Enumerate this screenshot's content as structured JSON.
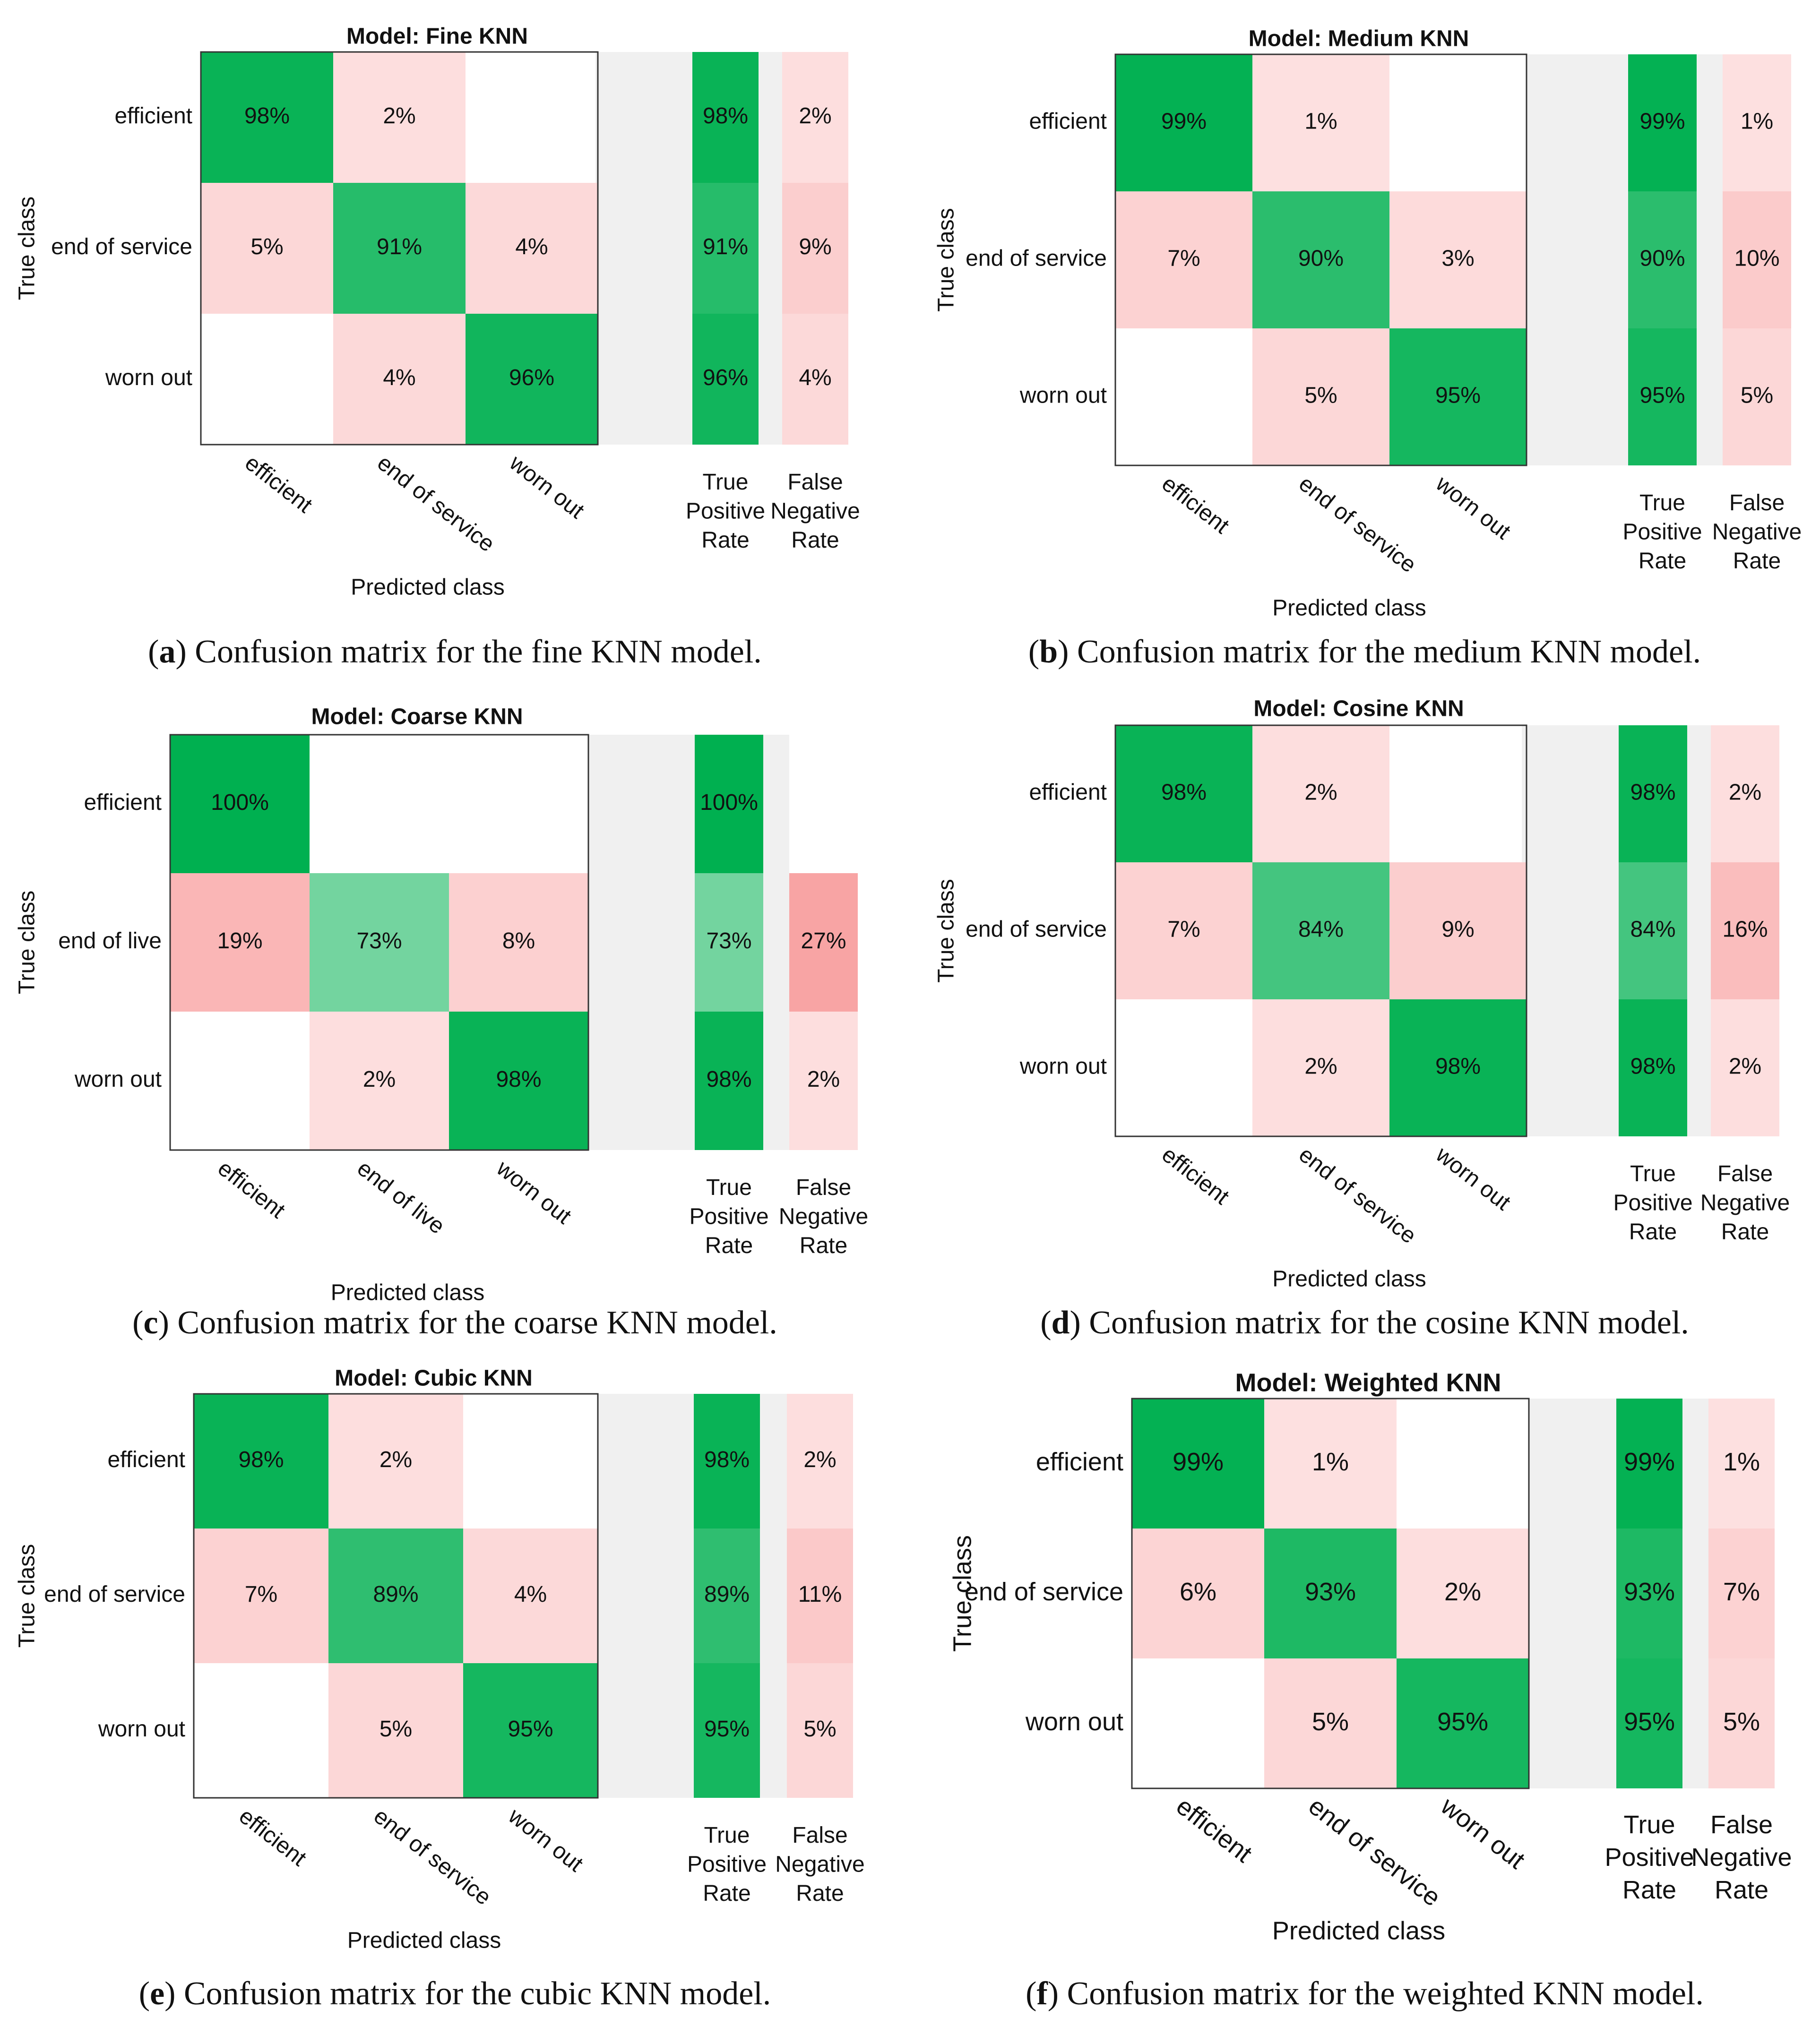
{
  "chart_data": [
    {
      "type": "heatmap",
      "title": "Model: Fine KNN",
      "ylabel": "True class",
      "xlabel": "Predicted class",
      "rows": [
        "efficient",
        "end of service",
        "worn out"
      ],
      "cols": [
        "efficient",
        "end of service",
        "worn out"
      ],
      "summary_headers": [
        "True Positive Rate",
        "False Negative Rate"
      ],
      "values": [
        [
          98,
          2,
          0
        ],
        [
          5,
          91,
          4
        ],
        [
          0,
          4,
          96
        ]
      ],
      "tpr": [
        98,
        91,
        96
      ],
      "fnr": [
        2,
        9,
        4
      ],
      "caption_letter": "a",
      "caption_text": "Confusion matrix for the fine KNN model."
    },
    {
      "type": "heatmap",
      "title": "Model: Medium KNN",
      "ylabel": "True class",
      "xlabel": "Predicted class",
      "rows": [
        "efficient",
        "end of service",
        "worn out"
      ],
      "cols": [
        "efficient",
        "end of service",
        "worn out"
      ],
      "summary_headers": [
        "True Positive Rate",
        "False Negative Rate"
      ],
      "values": [
        [
          99,
          1,
          0
        ],
        [
          7,
          90,
          3
        ],
        [
          0,
          5,
          95
        ]
      ],
      "tpr": [
        99,
        90,
        95
      ],
      "fnr": [
        1,
        10,
        5
      ],
      "caption_letter": "b",
      "caption_text": "Confusion matrix for the medium KNN model."
    },
    {
      "type": "heatmap",
      "title": "Model: Coarse KNN",
      "ylabel": "True class",
      "xlabel": "Predicted class",
      "rows": [
        "efficient",
        "end of live",
        "worn out"
      ],
      "cols": [
        "efficient",
        "end of live",
        "worn out"
      ],
      "summary_headers": [
        "True Positive Rate",
        "False Negative Rate"
      ],
      "values": [
        [
          100,
          0,
          0
        ],
        [
          19,
          73,
          8
        ],
        [
          0,
          2,
          98
        ]
      ],
      "tpr": [
        100,
        73,
        98
      ],
      "fnr": [
        0,
        27,
        2
      ],
      "caption_letter": "c",
      "caption_text": "Confusion matrix for the coarse KNN model."
    },
    {
      "type": "heatmap",
      "title": "Model: Cosine KNN",
      "ylabel": "True class",
      "xlabel": "Predicted class",
      "rows": [
        "efficient",
        "end of service",
        "worn out"
      ],
      "cols": [
        "efficient",
        "end of service",
        "worn out"
      ],
      "summary_headers": [
        "True Positive Rate",
        "False Negative Rate"
      ],
      "values": [
        [
          98,
          2,
          0
        ],
        [
          7,
          84,
          9
        ],
        [
          0,
          2,
          98
        ]
      ],
      "tpr": [
        98,
        84,
        98
      ],
      "fnr": [
        2,
        16,
        2
      ],
      "caption_letter": "d",
      "caption_text": "Confusion matrix for the cosine KNN model."
    },
    {
      "type": "heatmap",
      "title": "Model: Cubic KNN",
      "ylabel": "True class",
      "xlabel": "Predicted class",
      "rows": [
        "efficient",
        "end of service",
        "worn out"
      ],
      "cols": [
        "efficient",
        "end of service",
        "worn out"
      ],
      "summary_headers": [
        "True Positive Rate",
        "False Negative Rate"
      ],
      "values": [
        [
          98,
          2,
          0
        ],
        [
          7,
          89,
          4
        ],
        [
          0,
          5,
          95
        ]
      ],
      "tpr": [
        98,
        89,
        95
      ],
      "fnr": [
        2,
        11,
        5
      ],
      "caption_letter": "e",
      "caption_text": "Confusion matrix for the cubic KNN model."
    },
    {
      "type": "heatmap",
      "title": "Model: Weighted KNN",
      "ylabel": "True class",
      "xlabel": "Predicted class",
      "rows": [
        "efficient",
        "end of service",
        "worn out"
      ],
      "cols": [
        "efficient",
        "end of service",
        "worn out"
      ],
      "summary_headers": [
        "True Positive Rate",
        "False Negative Rate"
      ],
      "values": [
        [
          99,
          1,
          0
        ],
        [
          6,
          93,
          2
        ],
        [
          0,
          5,
          95
        ]
      ],
      "tpr": [
        99,
        93,
        95
      ],
      "fnr": [
        1,
        7,
        5
      ],
      "caption_letter": "f",
      "caption_text": "Confusion matrix for the weighted KNN model."
    }
  ],
  "colors": {
    "diag_full": "#00b050",
    "offdiag_light": "#fde0e0",
    "offdiag_strong": "#f8a4a4",
    "separator": "#f0f0f0",
    "text": "#111111"
  }
}
